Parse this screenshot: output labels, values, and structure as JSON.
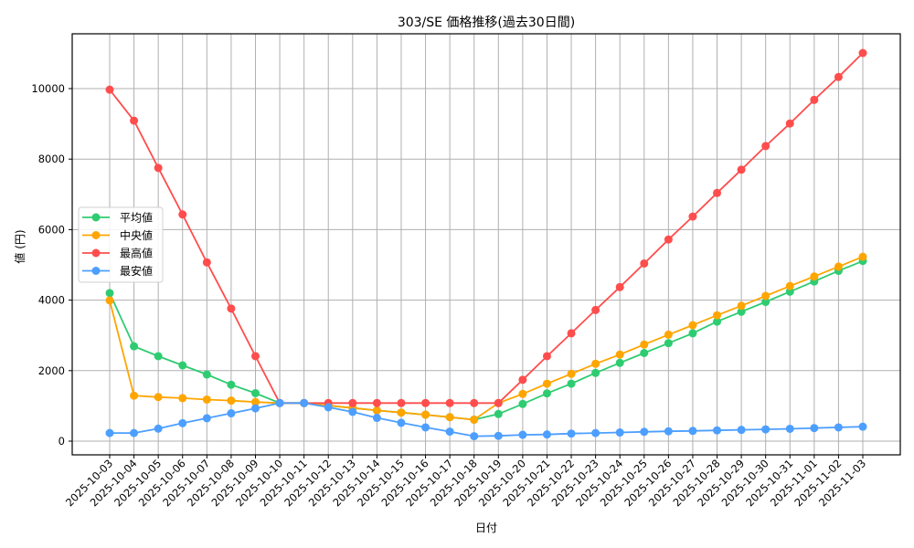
{
  "chart_data": {
    "type": "line",
    "title": "303/SE 価格推移(過去30日間)",
    "xlabel": "日付",
    "ylabel": "値 (円)",
    "ylim": [
      -400,
      11500
    ],
    "yticks": [
      0,
      2000,
      4000,
      6000,
      8000,
      10000
    ],
    "grid": true,
    "legend_position": "center left",
    "categories": [
      "2025-10-03",
      "2025-10-04",
      "2025-10-05",
      "2025-10-06",
      "2025-10-07",
      "2025-10-08",
      "2025-10-09",
      "2025-10-10",
      "2025-10-11",
      "2025-10-12",
      "2025-10-13",
      "2025-10-14",
      "2025-10-15",
      "2025-10-16",
      "2025-10-17",
      "2025-10-18",
      "2025-10-19",
      "2025-10-20",
      "2025-10-21",
      "2025-10-22",
      "2025-10-23",
      "2025-10-24",
      "2025-10-25",
      "2025-10-26",
      "2025-10-27",
      "2025-10-28",
      "2025-10-29",
      "2025-10-30",
      "2025-10-31",
      "2025-11-01",
      "2025-11-02",
      "2025-11-03"
    ],
    "series": [
      {
        "name": "平均値",
        "color": "#2ecc71",
        "values": [
          4200,
          2690,
          2410,
          2150,
          1890,
          1600,
          1360,
          1080,
          1080,
          1010,
          940,
          870,
          810,
          750,
          680,
          610,
          770,
          1055,
          1355,
          1630,
          1935,
          2220,
          2500,
          2780,
          3060,
          3390,
          3670,
          3950,
          4240,
          4530,
          4830,
          5110
        ]
      },
      {
        "name": "中央値",
        "color": "#ffa500",
        "values": [
          3990,
          1290,
          1250,
          1220,
          1180,
          1150,
          1110,
          1080,
          1080,
          1010,
          940,
          870,
          810,
          750,
          680,
          610,
          1080,
          1340,
          1630,
          1910,
          2195,
          2455,
          2740,
          3020,
          3290,
          3570,
          3840,
          4120,
          4400,
          4670,
          4950,
          5230
        ]
      },
      {
        "name": "最高値",
        "color": "#ff4d4d",
        "values": [
          9970,
          9090,
          7750,
          6430,
          5070,
          3760,
          2410,
          1080,
          1080,
          1080,
          1080,
          1080,
          1080,
          1080,
          1080,
          1080,
          1080,
          1740,
          2410,
          3060,
          3720,
          4370,
          5040,
          5720,
          6370,
          7040,
          7700,
          8370,
          9010,
          9680,
          10330,
          11010
        ]
      },
      {
        "name": "最安値",
        "color": "#4d9fff",
        "values": [
          230,
          230,
          355,
          510,
          650,
          790,
          930,
          1080,
          1080,
          960,
          830,
          660,
          520,
          390,
          270,
          140,
          150,
          180,
          190,
          215,
          230,
          245,
          265,
          280,
          290,
          305,
          320,
          335,
          350,
          370,
          390,
          410
        ]
      }
    ]
  }
}
